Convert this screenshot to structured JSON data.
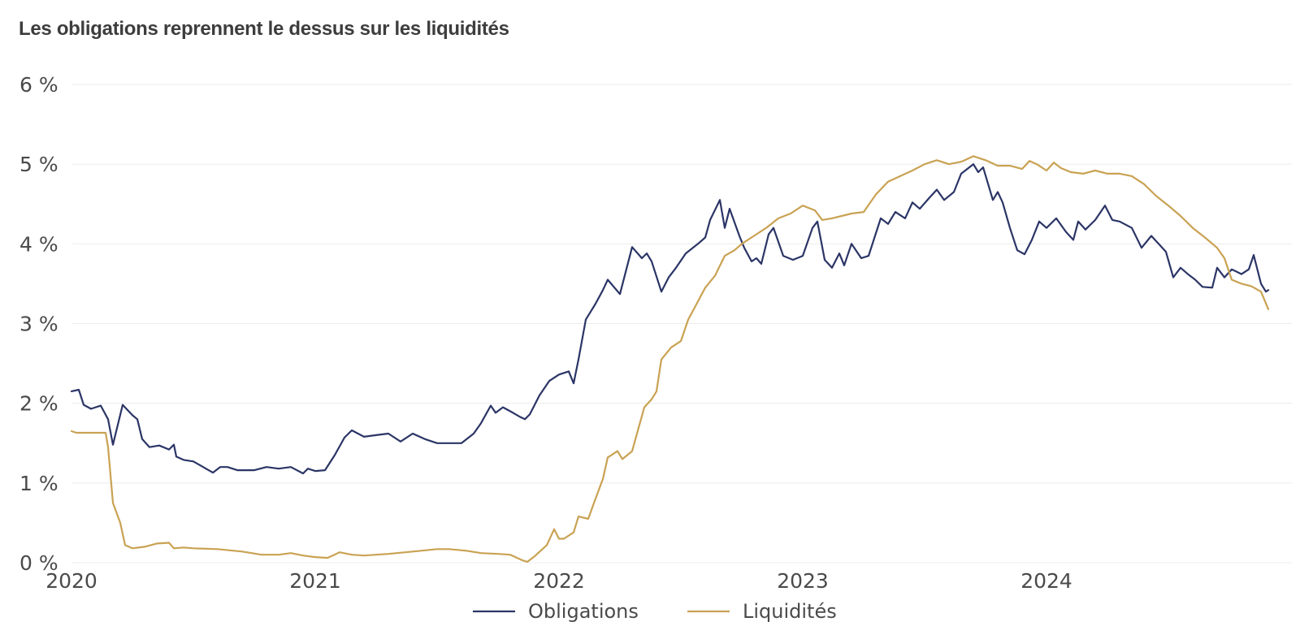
{
  "chart_data": {
    "type": "line",
    "title": "Les obligations reprennent le dessus sur les liquidités",
    "xlabel": "",
    "ylabel": "",
    "y_ticks": [
      "0 %",
      "1 %",
      "2 %",
      "3 %",
      "4 %",
      "5 %",
      "6 %"
    ],
    "x_ticks": [
      "2020",
      "2021",
      "2022",
      "2023",
      "2024"
    ],
    "ylim": [
      0,
      6
    ],
    "xlim": [
      2020.0,
      2024.95
    ],
    "grid": true,
    "legend_position": "bottom-center",
    "colors": {
      "Obligations": "#2b3566",
      "Liquidités": "#c9a253"
    },
    "series": [
      {
        "name": "Obligations",
        "points": [
          [
            2020.0,
            2.15
          ],
          [
            2020.03,
            2.17
          ],
          [
            2020.05,
            1.98
          ],
          [
            2020.08,
            1.93
          ],
          [
            2020.12,
            1.97
          ],
          [
            2020.15,
            1.8
          ],
          [
            2020.17,
            1.48
          ],
          [
            2020.21,
            1.98
          ],
          [
            2020.25,
            1.85
          ],
          [
            2020.27,
            1.8
          ],
          [
            2020.29,
            1.55
          ],
          [
            2020.32,
            1.45
          ],
          [
            2020.36,
            1.47
          ],
          [
            2020.4,
            1.42
          ],
          [
            2020.42,
            1.48
          ],
          [
            2020.43,
            1.33
          ],
          [
            2020.46,
            1.29
          ],
          [
            2020.5,
            1.27
          ],
          [
            2020.54,
            1.2
          ],
          [
            2020.58,
            1.13
          ],
          [
            2020.61,
            1.2
          ],
          [
            2020.64,
            1.2
          ],
          [
            2020.68,
            1.16
          ],
          [
            2020.75,
            1.16
          ],
          [
            2020.8,
            1.2
          ],
          [
            2020.85,
            1.18
          ],
          [
            2020.9,
            1.2
          ],
          [
            2020.95,
            1.12
          ],
          [
            2020.97,
            1.18
          ],
          [
            2021.0,
            1.15
          ],
          [
            2021.04,
            1.16
          ],
          [
            2021.08,
            1.35
          ],
          [
            2021.12,
            1.57
          ],
          [
            2021.15,
            1.66
          ],
          [
            2021.2,
            1.58
          ],
          [
            2021.25,
            1.6
          ],
          [
            2021.3,
            1.62
          ],
          [
            2021.35,
            1.52
          ],
          [
            2021.4,
            1.62
          ],
          [
            2021.45,
            1.55
          ],
          [
            2021.5,
            1.5
          ],
          [
            2021.55,
            1.5
          ],
          [
            2021.6,
            1.5
          ],
          [
            2021.65,
            1.62
          ],
          [
            2021.68,
            1.75
          ],
          [
            2021.72,
            1.97
          ],
          [
            2021.74,
            1.88
          ],
          [
            2021.77,
            1.95
          ],
          [
            2021.8,
            1.9
          ],
          [
            2021.84,
            1.83
          ],
          [
            2021.86,
            1.8
          ],
          [
            2021.88,
            1.86
          ],
          [
            2021.92,
            2.1
          ],
          [
            2021.96,
            2.28
          ],
          [
            2022.0,
            2.36
          ],
          [
            2022.04,
            2.4
          ],
          [
            2022.06,
            2.25
          ],
          [
            2022.08,
            2.55
          ],
          [
            2022.11,
            3.05
          ],
          [
            2022.15,
            3.25
          ],
          [
            2022.18,
            3.42
          ],
          [
            2022.2,
            3.55
          ],
          [
            2022.25,
            3.37
          ],
          [
            2022.3,
            3.96
          ],
          [
            2022.34,
            3.82
          ],
          [
            2022.36,
            3.88
          ],
          [
            2022.38,
            3.78
          ],
          [
            2022.42,
            3.4
          ],
          [
            2022.45,
            3.58
          ],
          [
            2022.48,
            3.7
          ],
          [
            2022.52,
            3.88
          ],
          [
            2022.57,
            4.0
          ],
          [
            2022.6,
            4.08
          ],
          [
            2022.62,
            4.3
          ],
          [
            2022.66,
            4.55
          ],
          [
            2022.68,
            4.2
          ],
          [
            2022.7,
            4.44
          ],
          [
            2022.74,
            4.1
          ],
          [
            2022.76,
            3.95
          ],
          [
            2022.79,
            3.78
          ],
          [
            2022.81,
            3.82
          ],
          [
            2022.83,
            3.75
          ],
          [
            2022.86,
            4.12
          ],
          [
            2022.88,
            4.2
          ],
          [
            2022.92,
            3.85
          ],
          [
            2022.96,
            3.8
          ],
          [
            2023.0,
            3.85
          ],
          [
            2023.04,
            4.2
          ],
          [
            2023.06,
            4.28
          ],
          [
            2023.09,
            3.8
          ],
          [
            2023.12,
            3.7
          ],
          [
            2023.15,
            3.88
          ],
          [
            2023.17,
            3.73
          ],
          [
            2023.2,
            4.0
          ],
          [
            2023.24,
            3.82
          ],
          [
            2023.27,
            3.85
          ],
          [
            2023.32,
            4.32
          ],
          [
            2023.35,
            4.25
          ],
          [
            2023.38,
            4.4
          ],
          [
            2023.42,
            4.32
          ],
          [
            2023.45,
            4.52
          ],
          [
            2023.48,
            4.44
          ],
          [
            2023.52,
            4.58
          ],
          [
            2023.55,
            4.68
          ],
          [
            2023.58,
            4.55
          ],
          [
            2023.62,
            4.65
          ],
          [
            2023.65,
            4.88
          ],
          [
            2023.7,
            5.0
          ],
          [
            2023.72,
            4.9
          ],
          [
            2023.74,
            4.96
          ],
          [
            2023.78,
            4.55
          ],
          [
            2023.8,
            4.65
          ],
          [
            2023.82,
            4.52
          ],
          [
            2023.85,
            4.2
          ],
          [
            2023.88,
            3.92
          ],
          [
            2023.91,
            3.87
          ],
          [
            2023.94,
            4.05
          ],
          [
            2023.97,
            4.28
          ],
          [
            2024.0,
            4.2
          ],
          [
            2024.04,
            4.32
          ],
          [
            2024.08,
            4.15
          ],
          [
            2024.11,
            4.05
          ],
          [
            2024.13,
            4.28
          ],
          [
            2024.16,
            4.18
          ],
          [
            2024.2,
            4.3
          ],
          [
            2024.24,
            4.48
          ],
          [
            2024.27,
            4.3
          ],
          [
            2024.3,
            4.28
          ],
          [
            2024.35,
            4.2
          ],
          [
            2024.39,
            3.95
          ],
          [
            2024.43,
            4.1
          ],
          [
            2024.46,
            4.0
          ],
          [
            2024.49,
            3.9
          ],
          [
            2024.52,
            3.58
          ],
          [
            2024.55,
            3.7
          ],
          [
            2024.58,
            3.62
          ],
          [
            2024.61,
            3.55
          ],
          [
            2024.64,
            3.46
          ],
          [
            2024.68,
            3.45
          ],
          [
            2024.7,
            3.7
          ],
          [
            2024.73,
            3.58
          ],
          [
            2024.76,
            3.68
          ],
          [
            2024.8,
            3.62
          ],
          [
            2024.83,
            3.68
          ],
          [
            2024.85,
            3.86
          ],
          [
            2024.88,
            3.5
          ],
          [
            2024.9,
            3.4
          ],
          [
            2024.91,
            3.42
          ]
        ]
      },
      {
        "name": "Liquidités",
        "points": [
          [
            2020.0,
            1.65
          ],
          [
            2020.02,
            1.63
          ],
          [
            2020.1,
            1.63
          ],
          [
            2020.14,
            1.63
          ],
          [
            2020.15,
            1.45
          ],
          [
            2020.17,
            0.75
          ],
          [
            2020.2,
            0.5
          ],
          [
            2020.22,
            0.22
          ],
          [
            2020.25,
            0.18
          ],
          [
            2020.3,
            0.2
          ],
          [
            2020.35,
            0.24
          ],
          [
            2020.4,
            0.25
          ],
          [
            2020.42,
            0.18
          ],
          [
            2020.46,
            0.19
          ],
          [
            2020.5,
            0.18
          ],
          [
            2020.6,
            0.17
          ],
          [
            2020.7,
            0.14
          ],
          [
            2020.78,
            0.1
          ],
          [
            2020.85,
            0.1
          ],
          [
            2020.9,
            0.12
          ],
          [
            2020.95,
            0.09
          ],
          [
            2021.0,
            0.07
          ],
          [
            2021.05,
            0.06
          ],
          [
            2021.1,
            0.13
          ],
          [
            2021.15,
            0.1
          ],
          [
            2021.2,
            0.09
          ],
          [
            2021.3,
            0.11
          ],
          [
            2021.4,
            0.14
          ],
          [
            2021.5,
            0.17
          ],
          [
            2021.55,
            0.17
          ],
          [
            2021.62,
            0.15
          ],
          [
            2021.68,
            0.12
          ],
          [
            2021.75,
            0.11
          ],
          [
            2021.8,
            0.1
          ],
          [
            2021.85,
            0.03
          ],
          [
            2021.87,
            0.01
          ],
          [
            2021.9,
            0.08
          ],
          [
            2021.95,
            0.22
          ],
          [
            2021.98,
            0.42
          ],
          [
            2022.0,
            0.3
          ],
          [
            2022.02,
            0.3
          ],
          [
            2022.06,
            0.38
          ],
          [
            2022.08,
            0.58
          ],
          [
            2022.12,
            0.55
          ],
          [
            2022.14,
            0.72
          ],
          [
            2022.18,
            1.05
          ],
          [
            2022.2,
            1.32
          ],
          [
            2022.24,
            1.4
          ],
          [
            2022.26,
            1.3
          ],
          [
            2022.3,
            1.4
          ],
          [
            2022.35,
            1.95
          ],
          [
            2022.38,
            2.05
          ],
          [
            2022.4,
            2.15
          ],
          [
            2022.42,
            2.55
          ],
          [
            2022.46,
            2.7
          ],
          [
            2022.5,
            2.78
          ],
          [
            2022.53,
            3.05
          ],
          [
            2022.56,
            3.22
          ],
          [
            2022.6,
            3.45
          ],
          [
            2022.64,
            3.6
          ],
          [
            2022.68,
            3.85
          ],
          [
            2022.72,
            3.92
          ],
          [
            2022.75,
            4.0
          ],
          [
            2022.8,
            4.1
          ],
          [
            2022.85,
            4.2
          ],
          [
            2022.9,
            4.32
          ],
          [
            2022.95,
            4.38
          ],
          [
            2023.0,
            4.48
          ],
          [
            2023.05,
            4.42
          ],
          [
            2023.08,
            4.3
          ],
          [
            2023.12,
            4.32
          ],
          [
            2023.2,
            4.38
          ],
          [
            2023.25,
            4.4
          ],
          [
            2023.3,
            4.62
          ],
          [
            2023.35,
            4.78
          ],
          [
            2023.4,
            4.85
          ],
          [
            2023.45,
            4.92
          ],
          [
            2023.5,
            5.0
          ],
          [
            2023.55,
            5.05
          ],
          [
            2023.6,
            5.0
          ],
          [
            2023.65,
            5.03
          ],
          [
            2023.7,
            5.1
          ],
          [
            2023.75,
            5.05
          ],
          [
            2023.8,
            4.98
          ],
          [
            2023.85,
            4.98
          ],
          [
            2023.9,
            4.94
          ],
          [
            2023.93,
            5.04
          ],
          [
            2023.96,
            5.0
          ],
          [
            2024.0,
            4.92
          ],
          [
            2024.03,
            5.02
          ],
          [
            2024.06,
            4.95
          ],
          [
            2024.1,
            4.9
          ],
          [
            2024.15,
            4.88
          ],
          [
            2024.2,
            4.92
          ],
          [
            2024.25,
            4.88
          ],
          [
            2024.3,
            4.88
          ],
          [
            2024.35,
            4.85
          ],
          [
            2024.4,
            4.75
          ],
          [
            2024.45,
            4.6
          ],
          [
            2024.5,
            4.48
          ],
          [
            2024.55,
            4.35
          ],
          [
            2024.6,
            4.2
          ],
          [
            2024.65,
            4.08
          ],
          [
            2024.7,
            3.95
          ],
          [
            2024.73,
            3.82
          ],
          [
            2024.76,
            3.55
          ],
          [
            2024.8,
            3.5
          ],
          [
            2024.84,
            3.47
          ],
          [
            2024.88,
            3.4
          ],
          [
            2024.91,
            3.18
          ]
        ]
      }
    ]
  }
}
